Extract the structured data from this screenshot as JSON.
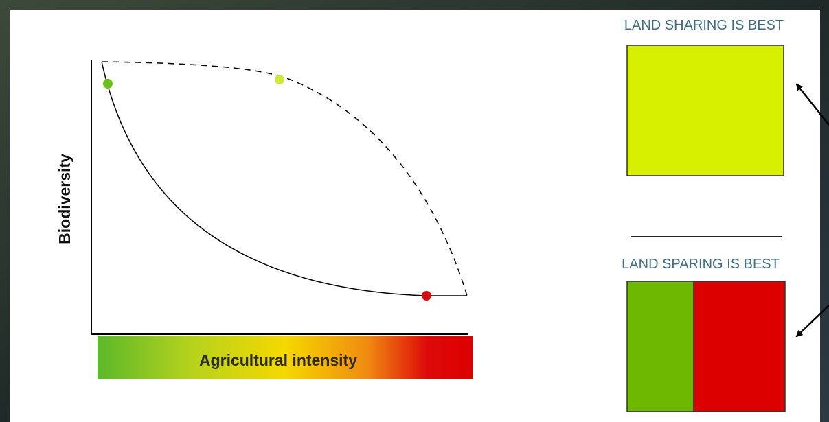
{
  "diagram": {
    "y_axis_label": "Biodiversity",
    "x_axis_label": "Agricultural intensity"
  },
  "panels": [
    {
      "label": "LAND SHARING IS BEST"
    },
    {
      "label": "LAND SPARING IS BEST"
    }
  ]
}
